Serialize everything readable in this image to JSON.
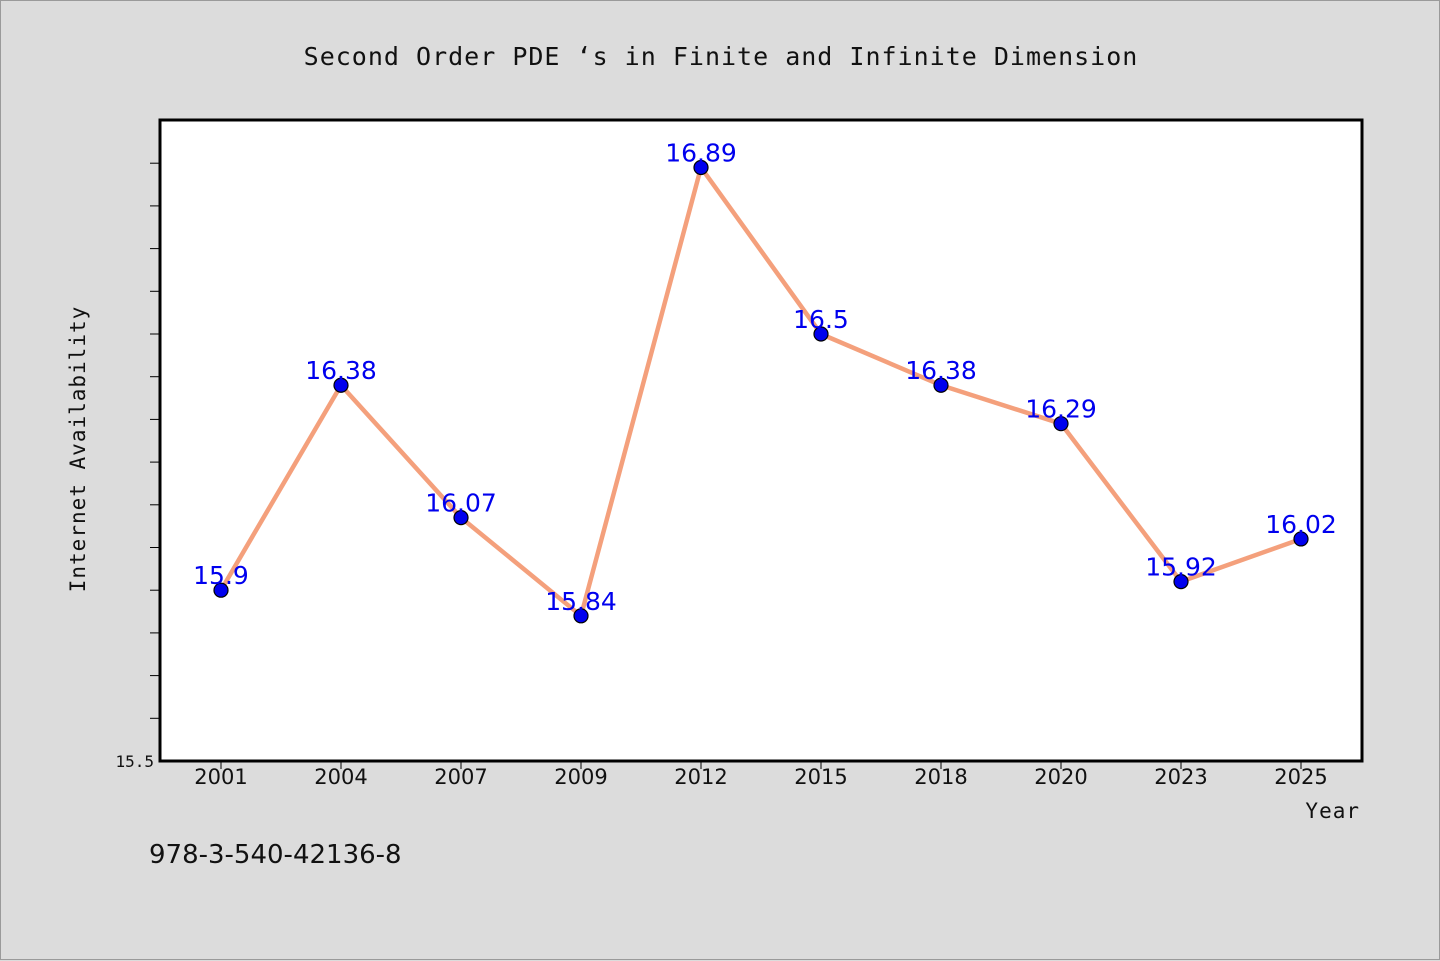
{
  "chart_data": {
    "type": "line",
    "title": "Second Order PDE ‘s in Finite and Infinite Dimension",
    "xlabel": "Year",
    "ylabel": "Internet Availability",
    "ymin_label": "15.5",
    "categories": [
      "2001",
      "2004",
      "2007",
      "2009",
      "2012",
      "2015",
      "2018",
      "2020",
      "2023",
      "2025"
    ],
    "series": [
      {
        "values": [
          15.9,
          16.38,
          16.07,
          15.84,
          16.89,
          16.5,
          16.38,
          16.29,
          15.92,
          16.02
        ],
        "labels": [
          "15.9",
          "16.38",
          "16.07",
          "15.84",
          "16.89",
          "16.5",
          "16.38",
          "16.29",
          "15.92",
          "16.02"
        ],
        "line_color": "#f4a07c",
        "marker_color": "#0000ee",
        "label_color": "#0000ee"
      }
    ],
    "ylim": [
      15.5,
      17.0
    ],
    "grid": false,
    "legend": "none"
  },
  "footer_text": "978-3-540-42136-8",
  "colors": {
    "background": "#dcdcdc",
    "plot_background": "#ffffff"
  }
}
